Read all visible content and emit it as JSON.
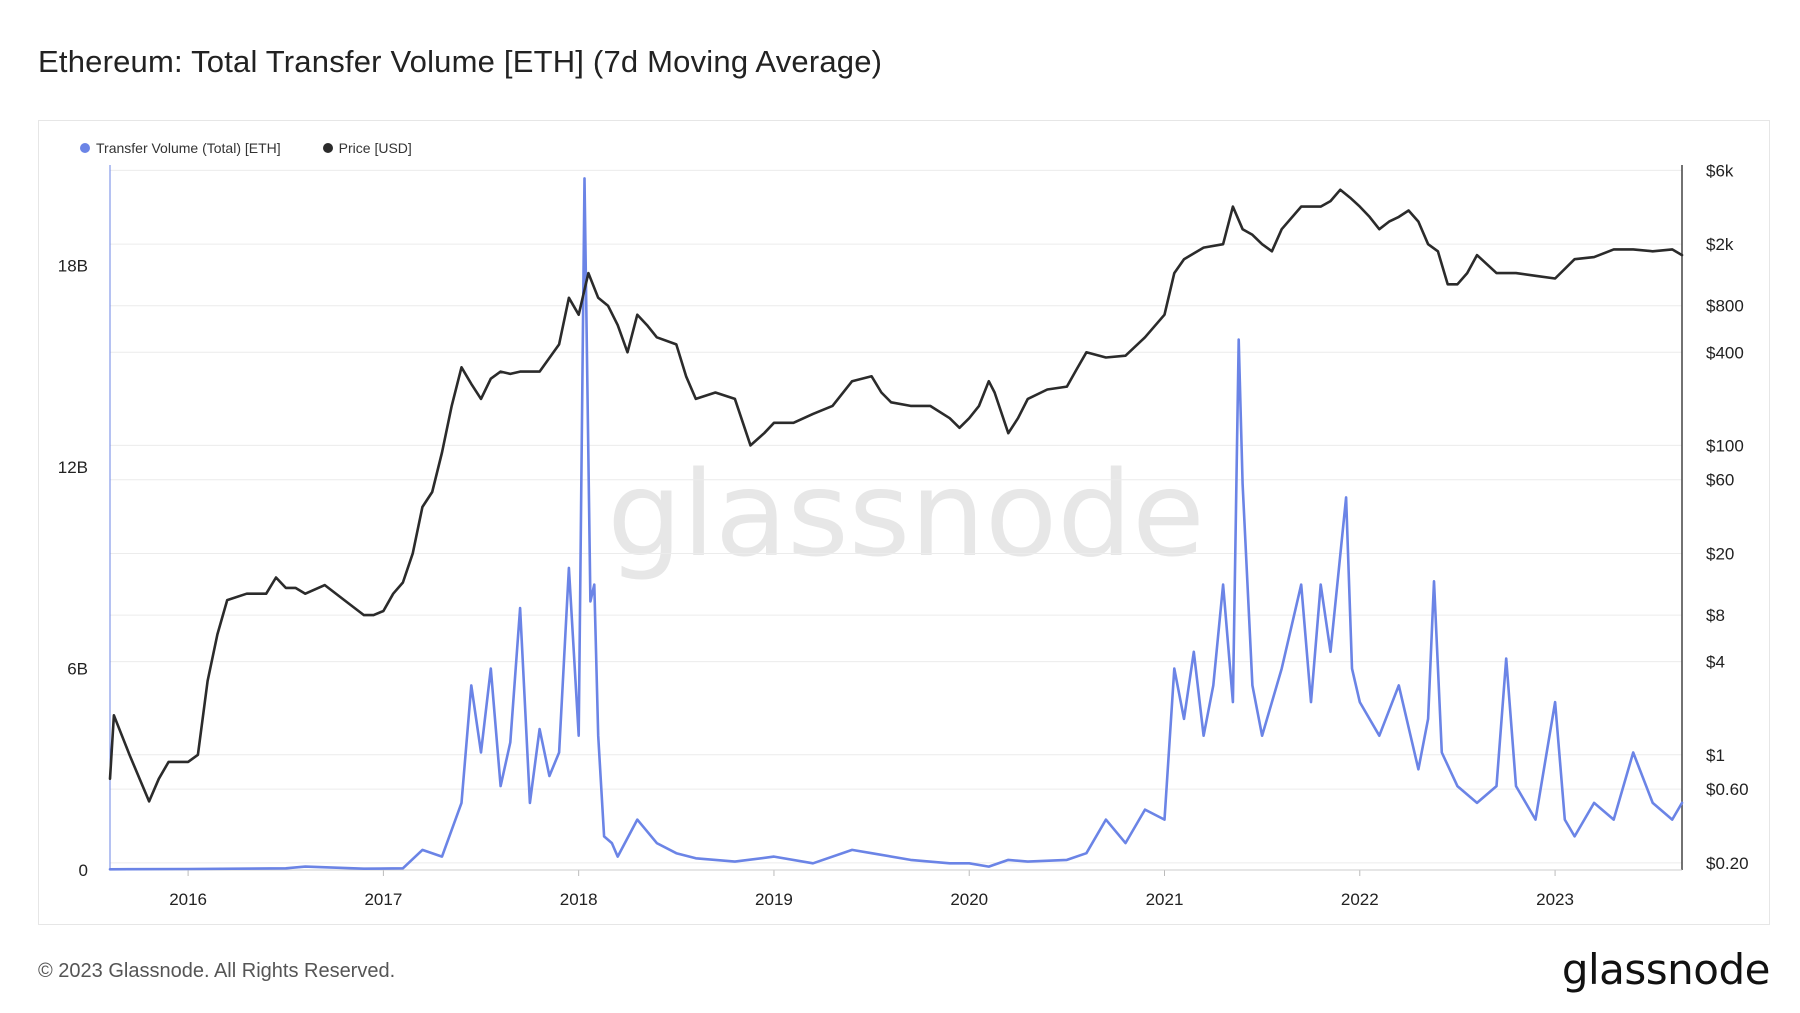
{
  "header": {
    "title": "Ethereum: Total Transfer Volume [ETH] (7d Moving Average)"
  },
  "footer": {
    "copyright": "© 2023 Glassnode. All Rights Reserved.",
    "brand": "glassnode"
  },
  "watermark": "glassnode",
  "colors": {
    "volume": "#6b84e6",
    "price": "#2b2b2b",
    "grid": "#ececec"
  },
  "chart_data": {
    "type": "line",
    "title": "Ethereum: Total Transfer Volume [ETH] (7d Moving Average)",
    "legend": {
      "position": "top-left",
      "entries": [
        "Transfer Volume (Total) [ETH]",
        "Price [USD]"
      ]
    },
    "grid": true,
    "x_ticks": [
      "2016",
      "2017",
      "2018",
      "2019",
      "2020",
      "2021",
      "2022",
      "2023"
    ],
    "xlim": [
      2015.6,
      2023.65
    ],
    "y_left": {
      "ticks": [
        0,
        6,
        12,
        18
      ],
      "tick_labels": [
        "0",
        "6B",
        "12B",
        "18B"
      ],
      "ylim": [
        0,
        21
      ],
      "unit": "B"
    },
    "y_right": {
      "scale": "log",
      "ticks": [
        0.2,
        0.6,
        1,
        4,
        8,
        20,
        60,
        100,
        400,
        800,
        2000,
        6000
      ],
      "tick_labels": [
        "$0.20",
        "$0.60",
        "$1",
        "$4",
        "$8",
        "$20",
        "$60",
        "$100",
        "$400",
        "$800",
        "$2k",
        "$6k"
      ],
      "ylim": [
        0.18,
        6500
      ]
    },
    "series": [
      {
        "name": "Transfer Volume (Total) [ETH]",
        "axis": "left",
        "x": [
          2015.6,
          2016.0,
          2016.5,
          2016.6,
          2016.9,
          2017.1,
          2017.2,
          2017.3,
          2017.4,
          2017.45,
          2017.5,
          2017.55,
          2017.6,
          2017.65,
          2017.7,
          2017.75,
          2017.8,
          2017.85,
          2017.9,
          2017.95,
          2018.0,
          2018.03,
          2018.06,
          2018.08,
          2018.1,
          2018.13,
          2018.17,
          2018.2,
          2018.3,
          2018.4,
          2018.5,
          2018.6,
          2018.8,
          2019.0,
          2019.2,
          2019.4,
          2019.5,
          2019.7,
          2019.9,
          2020.0,
          2020.1,
          2020.2,
          2020.3,
          2020.5,
          2020.6,
          2020.7,
          2020.8,
          2020.9,
          2021.0,
          2021.05,
          2021.1,
          2021.15,
          2021.2,
          2021.25,
          2021.3,
          2021.35,
          2021.38,
          2021.4,
          2021.45,
          2021.5,
          2021.6,
          2021.7,
          2021.75,
          2021.8,
          2021.85,
          2021.93,
          2021.96,
          2022.0,
          2022.1,
          2022.2,
          2022.3,
          2022.35,
          2022.38,
          2022.42,
          2022.5,
          2022.6,
          2022.7,
          2022.75,
          2022.8,
          2022.9,
          2023.0,
          2023.05,
          2023.1,
          2023.2,
          2023.3,
          2023.4,
          2023.5,
          2023.6,
          2023.65
        ],
        "values": [
          0.02,
          0.03,
          0.05,
          0.1,
          0.04,
          0.05,
          0.6,
          0.4,
          2.0,
          5.5,
          3.5,
          6.0,
          2.5,
          3.8,
          7.8,
          2.0,
          4.2,
          2.8,
          3.5,
          9.0,
          4.0,
          20.6,
          8.0,
          8.5,
          4.0,
          1.0,
          0.8,
          0.4,
          1.5,
          0.8,
          0.5,
          0.35,
          0.25,
          0.4,
          0.2,
          0.6,
          0.5,
          0.3,
          0.2,
          0.2,
          0.1,
          0.3,
          0.25,
          0.3,
          0.5,
          1.5,
          0.8,
          1.8,
          1.5,
          6.0,
          4.5,
          6.5,
          4.0,
          5.5,
          8.5,
          5.0,
          15.8,
          11.5,
          5.5,
          4.0,
          6.0,
          8.5,
          5.0,
          8.5,
          6.5,
          11.1,
          6.0,
          5.0,
          4.0,
          5.5,
          3.0,
          4.5,
          8.6,
          3.5,
          2.5,
          2.0,
          2.5,
          6.3,
          2.5,
          1.5,
          5.0,
          1.5,
          1.0,
          2.0,
          1.5,
          3.5,
          2.0,
          1.5,
          2.0
        ]
      },
      {
        "name": "Price [USD]",
        "axis": "right",
        "x": [
          2015.6,
          2015.62,
          2015.7,
          2015.8,
          2015.85,
          2015.9,
          2016.0,
          2016.05,
          2016.1,
          2016.15,
          2016.2,
          2016.3,
          2016.4,
          2016.45,
          2016.5,
          2016.55,
          2016.6,
          2016.7,
          2016.8,
          2016.9,
          2016.95,
          2017.0,
          2017.05,
          2017.1,
          2017.15,
          2017.2,
          2017.25,
          2017.3,
          2017.35,
          2017.4,
          2017.45,
          2017.5,
          2017.55,
          2017.6,
          2017.65,
          2017.7,
          2017.8,
          2017.9,
          2017.95,
          2018.0,
          2018.05,
          2018.1,
          2018.15,
          2018.2,
          2018.25,
          2018.3,
          2018.35,
          2018.4,
          2018.5,
          2018.55,
          2018.6,
          2018.7,
          2018.8,
          2018.88,
          2018.95,
          2019.0,
          2019.1,
          2019.2,
          2019.3,
          2019.4,
          2019.5,
          2019.55,
          2019.6,
          2019.7,
          2019.8,
          2019.9,
          2019.95,
          2020.0,
          2020.05,
          2020.1,
          2020.13,
          2020.2,
          2020.25,
          2020.3,
          2020.4,
          2020.5,
          2020.55,
          2020.6,
          2020.7,
          2020.8,
          2020.9,
          2021.0,
          2021.05,
          2021.1,
          2021.2,
          2021.3,
          2021.35,
          2021.4,
          2021.45,
          2021.5,
          2021.55,
          2021.6,
          2021.7,
          2021.8,
          2021.85,
          2021.9,
          2021.95,
          2022.0,
          2022.05,
          2022.1,
          2022.15,
          2022.2,
          2022.25,
          2022.3,
          2022.35,
          2022.4,
          2022.45,
          2022.5,
          2022.55,
          2022.6,
          2022.7,
          2022.8,
          2022.9,
          2023.0,
          2023.1,
          2023.2,
          2023.3,
          2023.4,
          2023.5,
          2023.6,
          2023.65
        ],
        "values": [
          0.7,
          1.8,
          1.0,
          0.5,
          0.7,
          0.9,
          0.9,
          1.0,
          3.0,
          6.0,
          10.0,
          11.0,
          11.0,
          14.0,
          12.0,
          12.0,
          11.0,
          12.5,
          10.0,
          8.0,
          8.0,
          8.5,
          11.0,
          13.0,
          20.0,
          40.0,
          50.0,
          90.0,
          180.0,
          320.0,
          250.0,
          200.0,
          270.0,
          300.0,
          290.0,
          300.0,
          300.0,
          450.0,
          900.0,
          700.0,
          1300.0,
          900.0,
          800.0,
          600.0,
          400.0,
          700.0,
          600.0,
          500.0,
          450.0,
          280.0,
          200.0,
          220.0,
          200.0,
          100.0,
          120.0,
          140.0,
          140.0,
          160.0,
          180.0,
          260.0,
          280.0,
          220.0,
          190.0,
          180.0,
          180.0,
          150.0,
          130.0,
          150.0,
          180.0,
          260.0,
          220.0,
          120.0,
          150.0,
          200.0,
          230.0,
          240.0,
          310.0,
          400.0,
          370.0,
          380.0,
          500.0,
          700.0,
          1300.0,
          1600.0,
          1900.0,
          2000.0,
          3500.0,
          2500.0,
          2300.0,
          2000.0,
          1800.0,
          2500.0,
          3500.0,
          3500.0,
          3800.0,
          4500.0,
          4000.0,
          3500.0,
          3000.0,
          2500.0,
          2800.0,
          3000.0,
          3300.0,
          2800.0,
          2000.0,
          1800.0,
          1100.0,
          1100.0,
          1300.0,
          1700.0,
          1300.0,
          1300.0,
          1250.0,
          1200.0,
          1600.0,
          1650.0,
          1850.0,
          1850.0,
          1800.0,
          1850.0,
          1700.0
        ]
      }
    ]
  },
  "legend": [
    {
      "label": "Transfer Volume (Total) [ETH]",
      "color": "#6b84e6"
    },
    {
      "label": "Price [USD]",
      "color": "#2b2b2b"
    }
  ]
}
